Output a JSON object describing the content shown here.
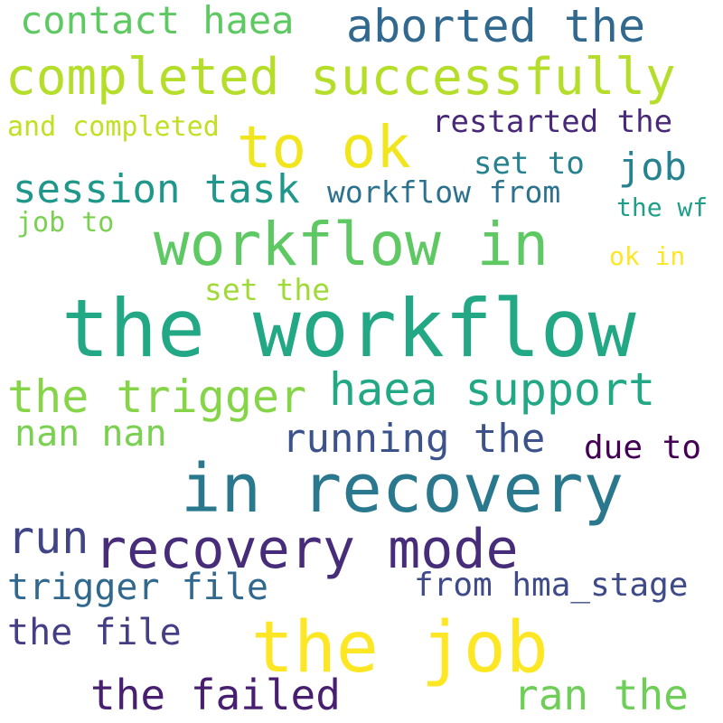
{
  "words": [
    {
      "text": "contact haea",
      "color": "#5ec962"
    },
    {
      "text": "aborted the",
      "color": "#31688e"
    },
    {
      "text": "completed successfully",
      "color": "#b5de2b"
    },
    {
      "text": "and completed",
      "color": "#c2df23"
    },
    {
      "text": "to ok",
      "color": "#f1e51d"
    },
    {
      "text": "restarted the",
      "color": "#482878"
    },
    {
      "text": "set to",
      "color": "#26828e"
    },
    {
      "text": "job",
      "color": "#26828e"
    },
    {
      "text": "session task",
      "color": "#1f988b"
    },
    {
      "text": "workflow from",
      "color": "#2c728e"
    },
    {
      "text": "job to",
      "color": "#7ad151"
    },
    {
      "text": "the wf",
      "color": "#1f9e89"
    },
    {
      "text": "workflow in",
      "color": "#5ec962"
    },
    {
      "text": "ok in",
      "color": "#fde725"
    },
    {
      "text": "set the",
      "color": "#a0da39"
    },
    {
      "text": "the workflow",
      "color": "#22a884"
    },
    {
      "text": "haea support",
      "color": "#22a884"
    },
    {
      "text": "the trigger",
      "color": "#86d549"
    },
    {
      "text": "nan nan",
      "color": "#7ad151"
    },
    {
      "text": "running the",
      "color": "#3b528b"
    },
    {
      "text": "due to",
      "color": "#440154"
    },
    {
      "text": "in recovery",
      "color": "#2a788e"
    },
    {
      "text": "run",
      "color": "#414487"
    },
    {
      "text": "recovery mode",
      "color": "#472c7a"
    },
    {
      "text": "trigger file",
      "color": "#31688e"
    },
    {
      "text": "from hma_stage",
      "color": "#3e4a89"
    },
    {
      "text": "the file",
      "color": "#433e85"
    },
    {
      "text": "the job",
      "color": "#fde725"
    },
    {
      "text": "the failed",
      "color": "#481f70"
    },
    {
      "text": "ran the",
      "color": "#6ece58"
    }
  ]
}
